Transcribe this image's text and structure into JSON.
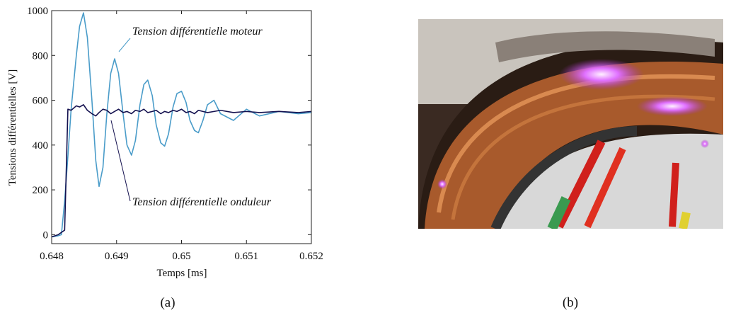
{
  "chart_data": {
    "type": "line",
    "xlabel": "Temps [ms]",
    "ylabel": "Tensions différentielles [V]",
    "xlim": [
      0.648,
      0.652
    ],
    "ylim": [
      -40,
      1000
    ],
    "xticks": [
      0.648,
      0.649,
      0.65,
      0.651,
      0.652
    ],
    "yticks": [
      0,
      200,
      400,
      600,
      800,
      1000
    ],
    "annotations": [
      "Tension différentielle moteur",
      "Tension différentielle onduleur"
    ],
    "x": [
      0.648,
      0.6481,
      0.64815,
      0.6482,
      0.64825,
      0.6483,
      0.64838,
      0.64843,
      0.64849,
      0.64855,
      0.64862,
      0.64868,
      0.64873,
      0.64879,
      0.64885,
      0.64891,
      0.64897,
      0.64903,
      0.6491,
      0.64916,
      0.64923,
      0.64929,
      0.64936,
      0.64942,
      0.64948,
      0.64955,
      0.64961,
      0.64968,
      0.64974,
      0.6498,
      0.64987,
      0.64993,
      0.65,
      0.65007,
      0.65013,
      0.6502,
      0.65026,
      0.65033,
      0.6504,
      0.6505,
      0.6506,
      0.6508,
      0.651,
      0.6512,
      0.6515,
      0.6518,
      0.652
    ],
    "series": [
      {
        "color": "#4a9cc9",
        "values": [
          -10,
          -5,
          0,
          150,
          350,
          560,
          800,
          930,
          990,
          880,
          600,
          330,
          215,
          300,
          540,
          720,
          785,
          720,
          540,
          400,
          355,
          420,
          580,
          670,
          690,
          620,
          490,
          410,
          395,
          450,
          570,
          630,
          640,
          590,
          510,
          465,
          455,
          510,
          580,
          600,
          540,
          510,
          560,
          530,
          550,
          540,
          545
        ]
      },
      {
        "color": "#14114f",
        "values": [
          -10,
          0,
          10,
          20,
          560,
          555,
          575,
          570,
          580,
          555,
          540,
          530,
          545,
          560,
          555,
          540,
          550,
          560,
          545,
          550,
          540,
          555,
          550,
          560,
          545,
          550,
          555,
          540,
          550,
          545,
          555,
          550,
          560,
          545,
          550,
          540,
          555,
          550,
          545,
          550,
          555,
          545,
          550,
          545,
          550,
          545,
          550
        ]
      }
    ]
  },
  "captions": [
    "(a)",
    "(b)"
  ]
}
